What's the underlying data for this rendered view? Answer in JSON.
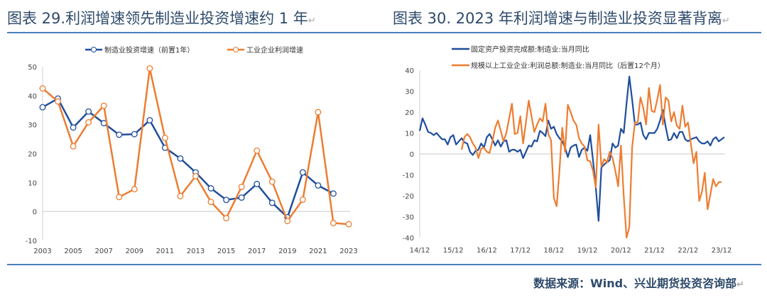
{
  "titles": {
    "left": "图表 29.利润增速领先制造业投资增速约 1 年",
    "right": "图表 30. 2023 年利润增速与制造业投资显著背离"
  },
  "source": "数据来源：Wind、兴业期货投资咨询部",
  "colors": {
    "blue": "#1f4e9c",
    "orange": "#ed7d31",
    "title": "#2e4a6b",
    "rule": "#4a7ebb"
  },
  "chart_data": [
    {
      "type": "line",
      "title": "",
      "xlabel": "",
      "ylabel": "",
      "ylim": [
        -10,
        50
      ],
      "yticks": [
        "-10",
        "0",
        "10",
        "20",
        "30",
        "40",
        "50"
      ],
      "x": [
        2003,
        2004,
        2005,
        2006,
        2007,
        2008,
        2009,
        2010,
        2011,
        2012,
        2013,
        2014,
        2015,
        2016,
        2017,
        2018,
        2019,
        2020,
        2021,
        2022,
        2023
      ],
      "xticks": [
        "2003",
        "2005",
        "2007",
        "2009",
        "2011",
        "2013",
        "2015",
        "2017",
        "2019",
        "2021",
        "2023"
      ],
      "legend": "top",
      "series": [
        {
          "name": "制造业投资增速（前置1年）",
          "color": "#1f4e9c",
          "values": [
            36,
            39,
            29,
            34.5,
            30.5,
            26.5,
            26.7,
            31.5,
            22,
            18.3,
            13.5,
            8,
            4,
            4.8,
            9.5,
            3,
            -2,
            13.5,
            9,
            6.2,
            null
          ]
        },
        {
          "name": "工业企业利润增速",
          "color": "#ed7d31",
          "values": [
            42.5,
            38,
            22.5,
            30.8,
            36.5,
            5,
            7.7,
            49.4,
            25.4,
            5.3,
            12.2,
            3.3,
            -2.3,
            8.5,
            21,
            10.3,
            -3.3,
            4.1,
            34.3,
            -4,
            -4.4
          ]
        }
      ]
    },
    {
      "type": "line",
      "title": "",
      "xlabel": "",
      "ylabel": "",
      "ylim": [
        -40,
        40
      ],
      "yticks": [
        "-40",
        "-30",
        "-20",
        "-10",
        "0",
        "10",
        "20",
        "30",
        "40"
      ],
      "xticks": [
        "14/12",
        "15/12",
        "16/12",
        "17/12",
        "18/12",
        "19/12",
        "20/12",
        "21/12",
        "22/12",
        "23/12"
      ],
      "x_unit": "months since 2014-12",
      "legend": "top-left",
      "series": [
        {
          "name": "固定资产投资完成额:制造业:当月同比",
          "color": "#1f4e9c",
          "start": 0,
          "values": [
            11,
            17,
            14,
            10.5,
            10,
            9,
            10,
            8.5,
            7,
            7,
            4.5,
            8,
            9,
            4.5,
            6,
            7.5,
            5.5,
            5,
            1,
            -0.5,
            1.5,
            2,
            5,
            3,
            8,
            9.5,
            7,
            4,
            6.5,
            3.5,
            6,
            6.5,
            1,
            2,
            2,
            1,
            2,
            -2,
            1,
            4,
            3.5,
            6.5,
            6,
            11,
            10,
            8.5,
            16,
            12,
            13,
            9.5,
            7.5,
            6,
            3,
            -1.5,
            3,
            4,
            4.5,
            -1.5,
            2,
            3,
            1.5,
            9,
            -3,
            -16,
            -32,
            -6.5,
            -5,
            -4,
            -3,
            5,
            3,
            4,
            12,
            10,
            24,
            37,
            26,
            14,
            14,
            15,
            9,
            7,
            10,
            10,
            10,
            12,
            16,
            21,
            13,
            6.5,
            7,
            10,
            7.5,
            10.5,
            10.5,
            7,
            6,
            7,
            7.5,
            8,
            6,
            5,
            5,
            6,
            4,
            7,
            8,
            6,
            7,
            8
          ]
        },
        {
          "name": "规模以上工业企业:利润总额:制造业:当月同比（后置12个月）",
          "color": "#ed7d31",
          "start": 15,
          "values": [
            2,
            8,
            9.5,
            8,
            5,
            3,
            -2,
            2.5,
            3,
            1,
            0.5,
            6,
            12.5,
            16,
            11,
            6,
            10,
            17,
            24,
            9.5,
            10,
            18,
            5,
            15,
            25.5,
            18,
            10.5,
            14,
            17,
            15.5,
            24,
            9.5,
            6.5,
            -21,
            -25,
            -8,
            12.5,
            1,
            23.5,
            20,
            16,
            14,
            7.5,
            5,
            3.5,
            -3,
            -3.5,
            -8,
            -16,
            14,
            -6,
            -2.5,
            -4,
            1,
            -2,
            -8,
            -15.5,
            4,
            -20,
            -40,
            -35,
            3,
            15,
            15,
            27,
            22,
            14,
            31.5,
            20.5,
            20,
            26,
            33,
            14,
            27,
            25.5,
            15.5,
            20,
            13.5,
            12,
            23,
            13,
            15,
            5,
            -4.5,
            1,
            -22.5,
            -18,
            -9,
            -26.5,
            -19.5,
            -12,
            -15.5,
            -13.5,
            -13.5
          ]
        }
      ]
    }
  ]
}
